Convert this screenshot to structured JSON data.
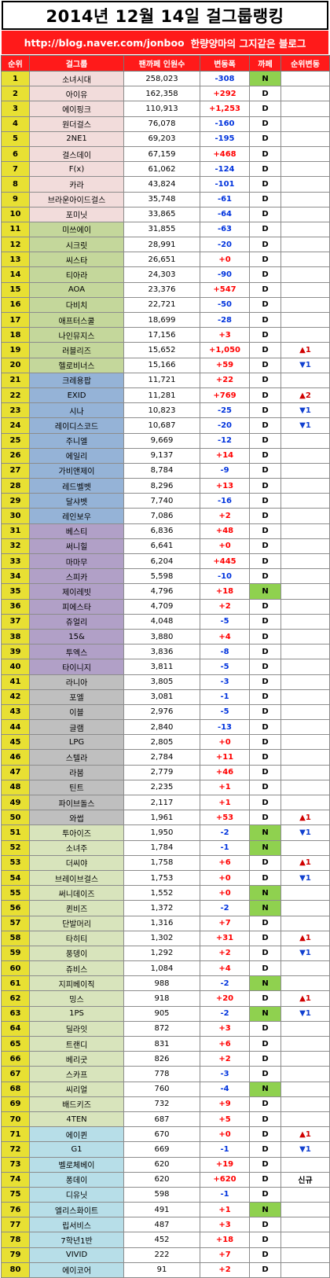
{
  "title": "2014년 12월 14일 걸그룹랭킹",
  "url_bar": {
    "url": "http://blog.naver.com/jonboo",
    "tagline": "한량양마의 그지같은 블로그"
  },
  "headers": [
    "순위",
    "걸그룹",
    "팬까페 인원수",
    "변동폭",
    "까페",
    "순위변동"
  ],
  "groups": [
    {
      "name": "소녀시대",
      "fans": "258,023",
      "change": "-308",
      "cafe": "N",
      "rank_change": ""
    },
    {
      "name": "아이유",
      "fans": "162,358",
      "change": "+292",
      "cafe": "D",
      "rank_change": ""
    },
    {
      "name": "에이핑크",
      "fans": "110,913",
      "change": "+1,253",
      "cafe": "D",
      "rank_change": ""
    },
    {
      "name": "원더걸스",
      "fans": "76,078",
      "change": "-160",
      "cafe": "D",
      "rank_change": ""
    },
    {
      "name": "2NE1",
      "fans": "69,203",
      "change": "-195",
      "cafe": "D",
      "rank_change": ""
    },
    {
      "name": "걸스데이",
      "fans": "67,159",
      "change": "+468",
      "cafe": "D",
      "rank_change": ""
    },
    {
      "name": "F(x)",
      "fans": "61,062",
      "change": "-124",
      "cafe": "D",
      "rank_change": ""
    },
    {
      "name": "카라",
      "fans": "43,824",
      "change": "-101",
      "cafe": "D",
      "rank_change": ""
    },
    {
      "name": "브라운아이드걸스",
      "fans": "35,748",
      "change": "-61",
      "cafe": "D",
      "rank_change": ""
    },
    {
      "name": "포미닛",
      "fans": "33,865",
      "change": "-64",
      "cafe": "D",
      "rank_change": ""
    },
    {
      "name": "미쓰에이",
      "fans": "31,855",
      "change": "-63",
      "cafe": "D",
      "rank_change": ""
    },
    {
      "name": "시크릿",
      "fans": "28,991",
      "change": "-20",
      "cafe": "D",
      "rank_change": ""
    },
    {
      "name": "씨스타",
      "fans": "26,651",
      "change": "+0",
      "cafe": "D",
      "rank_change": ""
    },
    {
      "name": "티아라",
      "fans": "24,303",
      "change": "-90",
      "cafe": "D",
      "rank_change": ""
    },
    {
      "name": "AOA",
      "fans": "23,376",
      "change": "+547",
      "cafe": "D",
      "rank_change": ""
    },
    {
      "name": "다비치",
      "fans": "22,721",
      "change": "-50",
      "cafe": "D",
      "rank_change": ""
    },
    {
      "name": "애프터스쿨",
      "fans": "18,699",
      "change": "-28",
      "cafe": "D",
      "rank_change": ""
    },
    {
      "name": "나인뮤지스",
      "fans": "17,156",
      "change": "+3",
      "cafe": "D",
      "rank_change": ""
    },
    {
      "name": "러블리즈",
      "fans": "15,652",
      "change": "+1,050",
      "cafe": "D",
      "rank_change": "▲1"
    },
    {
      "name": "헬로비너스",
      "fans": "15,166",
      "change": "+59",
      "cafe": "D",
      "rank_change": "▼1"
    },
    {
      "name": "크레용팝",
      "fans": "11,721",
      "change": "+22",
      "cafe": "D",
      "rank_change": ""
    },
    {
      "name": "EXID",
      "fans": "11,281",
      "change": "+769",
      "cafe": "D",
      "rank_change": "▲2"
    },
    {
      "name": "시나",
      "fans": "10,823",
      "change": "-25",
      "cafe": "D",
      "rank_change": "▼1"
    },
    {
      "name": "레이디스코드",
      "fans": "10,687",
      "change": "-20",
      "cafe": "D",
      "rank_change": "▼1"
    },
    {
      "name": "주니엘",
      "fans": "9,669",
      "change": "-12",
      "cafe": "D",
      "rank_change": ""
    },
    {
      "name": "에일리",
      "fans": "9,137",
      "change": "+14",
      "cafe": "D",
      "rank_change": ""
    },
    {
      "name": "가비앤제이",
      "fans": "8,784",
      "change": "-9",
      "cafe": "D",
      "rank_change": ""
    },
    {
      "name": "레드벨벳",
      "fans": "8,296",
      "change": "+13",
      "cafe": "D",
      "rank_change": ""
    },
    {
      "name": "달샤벳",
      "fans": "7,740",
      "change": "-16",
      "cafe": "D",
      "rank_change": ""
    },
    {
      "name": "레인보우",
      "fans": "7,086",
      "change": "+2",
      "cafe": "D",
      "rank_change": ""
    },
    {
      "name": "베스티",
      "fans": "6,836",
      "change": "+48",
      "cafe": "D",
      "rank_change": ""
    },
    {
      "name": "써니힐",
      "fans": "6,641",
      "change": "+0",
      "cafe": "D",
      "rank_change": ""
    },
    {
      "name": "마마무",
      "fans": "6,204",
      "change": "+445",
      "cafe": "D",
      "rank_change": ""
    },
    {
      "name": "스피카",
      "fans": "5,598",
      "change": "-10",
      "cafe": "D",
      "rank_change": ""
    },
    {
      "name": "제이레빗",
      "fans": "4,796",
      "change": "+18",
      "cafe": "N",
      "rank_change": ""
    },
    {
      "name": "피에스타",
      "fans": "4,709",
      "change": "+2",
      "cafe": "D",
      "rank_change": ""
    },
    {
      "name": "쥬얼리",
      "fans": "4,048",
      "change": "-5",
      "cafe": "D",
      "rank_change": ""
    },
    {
      "name": "15&",
      "fans": "3,880",
      "change": "+4",
      "cafe": "D",
      "rank_change": ""
    },
    {
      "name": "투엑스",
      "fans": "3,836",
      "change": "-8",
      "cafe": "D",
      "rank_change": ""
    },
    {
      "name": "타이니지",
      "fans": "3,811",
      "change": "-5",
      "cafe": "D",
      "rank_change": ""
    },
    {
      "name": "라니아",
      "fans": "3,805",
      "change": "-3",
      "cafe": "D",
      "rank_change": ""
    },
    {
      "name": "포엘",
      "fans": "3,081",
      "change": "-1",
      "cafe": "D",
      "rank_change": ""
    },
    {
      "name": "이블",
      "fans": "2,976",
      "change": "-5",
      "cafe": "D",
      "rank_change": ""
    },
    {
      "name": "글램",
      "fans": "2,840",
      "change": "-13",
      "cafe": "D",
      "rank_change": ""
    },
    {
      "name": "LPG",
      "fans": "2,805",
      "change": "+0",
      "cafe": "D",
      "rank_change": ""
    },
    {
      "name": "스텔라",
      "fans": "2,784",
      "change": "+11",
      "cafe": "D",
      "rank_change": ""
    },
    {
      "name": "라붐",
      "fans": "2,779",
      "change": "+46",
      "cafe": "D",
      "rank_change": ""
    },
    {
      "name": "틴트",
      "fans": "2,235",
      "change": "+1",
      "cafe": "D",
      "rank_change": ""
    },
    {
      "name": "파이브돌스",
      "fans": "2,117",
      "change": "+1",
      "cafe": "D",
      "rank_change": ""
    },
    {
      "name": "와썹",
      "fans": "1,961",
      "change": "+53",
      "cafe": "D",
      "rank_change": "▲1"
    },
    {
      "name": "투아이즈",
      "fans": "1,950",
      "change": "-2",
      "cafe": "N",
      "rank_change": "▼1"
    },
    {
      "name": "소녀주",
      "fans": "1,784",
      "change": "-1",
      "cafe": "N",
      "rank_change": ""
    },
    {
      "name": "더씨야",
      "fans": "1,758",
      "change": "+6",
      "cafe": "D",
      "rank_change": "▲1"
    },
    {
      "name": "브레이브걸스",
      "fans": "1,753",
      "change": "+0",
      "cafe": "D",
      "rank_change": "▼1"
    },
    {
      "name": "써니데이즈",
      "fans": "1,552",
      "change": "+0",
      "cafe": "N",
      "rank_change": ""
    },
    {
      "name": "퀸비즈",
      "fans": "1,372",
      "change": "-2",
      "cafe": "N",
      "rank_change": ""
    },
    {
      "name": "단발머리",
      "fans": "1,316",
      "change": "+7",
      "cafe": "D",
      "rank_change": ""
    },
    {
      "name": "타히티",
      "fans": "1,302",
      "change": "+31",
      "cafe": "D",
      "rank_change": "▲1"
    },
    {
      "name": "풍뎅이",
      "fans": "1,292",
      "change": "+2",
      "cafe": "D",
      "rank_change": "▼1"
    },
    {
      "name": "쥬비스",
      "fans": "1,084",
      "change": "+4",
      "cafe": "D",
      "rank_change": ""
    },
    {
      "name": "지피베이직",
      "fans": "988",
      "change": "-2",
      "cafe": "N",
      "rank_change": ""
    },
    {
      "name": "밍스",
      "fans": "918",
      "change": "+20",
      "cafe": "D",
      "rank_change": "▲1"
    },
    {
      "name": "1PS",
      "fans": "905",
      "change": "-2",
      "cafe": "N",
      "rank_change": "▼1"
    },
    {
      "name": "딜라잇",
      "fans": "872",
      "change": "+3",
      "cafe": "D",
      "rank_change": ""
    },
    {
      "name": "트랜디",
      "fans": "831",
      "change": "+6",
      "cafe": "D",
      "rank_change": ""
    },
    {
      "name": "베리굿",
      "fans": "826",
      "change": "+2",
      "cafe": "D",
      "rank_change": ""
    },
    {
      "name": "스카프",
      "fans": "778",
      "change": "-3",
      "cafe": "D",
      "rank_change": ""
    },
    {
      "name": "씨리얼",
      "fans": "760",
      "change": "-4",
      "cafe": "N",
      "rank_change": ""
    },
    {
      "name": "배드키즈",
      "fans": "732",
      "change": "+9",
      "cafe": "D",
      "rank_change": ""
    },
    {
      "name": "4TEN",
      "fans": "687",
      "change": "+5",
      "cafe": "D",
      "rank_change": ""
    },
    {
      "name": "에이퀸",
      "fans": "670",
      "change": "+0",
      "cafe": "D",
      "rank_change": "▲1"
    },
    {
      "name": "G1",
      "fans": "669",
      "change": "-1",
      "cafe": "D",
      "rank_change": "▼1"
    },
    {
      "name": "벨로체베이",
      "fans": "620",
      "change": "+19",
      "cafe": "D",
      "rank_change": ""
    },
    {
      "name": "퐁데이",
      "fans": "620",
      "change": "+620",
      "cafe": "D",
      "rank_change": "신규"
    },
    {
      "name": "디유닛",
      "fans": "598",
      "change": "-1",
      "cafe": "D",
      "rank_change": ""
    },
    {
      "name": "엘리스화이트",
      "fans": "491",
      "change": "+1",
      "cafe": "N",
      "rank_change": ""
    },
    {
      "name": "립서비스",
      "fans": "487",
      "change": "+3",
      "cafe": "D",
      "rank_change": ""
    },
    {
      "name": "7학년1반",
      "fans": "452",
      "change": "+18",
      "cafe": "D",
      "rank_change": ""
    },
    {
      "name": "VIVID",
      "fans": "222",
      "change": "+7",
      "cafe": "D",
      "rank_change": ""
    },
    {
      "name": "에이코어",
      "fans": "91",
      "change": "+2",
      "cafe": "D",
      "rank_change": ""
    }
  ],
  "colors": {
    "header_bg": "#ff1a1a",
    "rank_bg": "#e8e033",
    "positive": "#ff0000",
    "negative": "#0033dd",
    "naver_cafe_bg": "#8fd14f",
    "band_1_10": "#f2dcdb",
    "band_11_20": "#c4d79b",
    "band_21_30": "#95b3d7",
    "band_31_40": "#b1a0c7",
    "band_41_50": "#bfbfbf",
    "band_51_70": "#d8e4bc",
    "band_71_80": "#b7dee8"
  }
}
